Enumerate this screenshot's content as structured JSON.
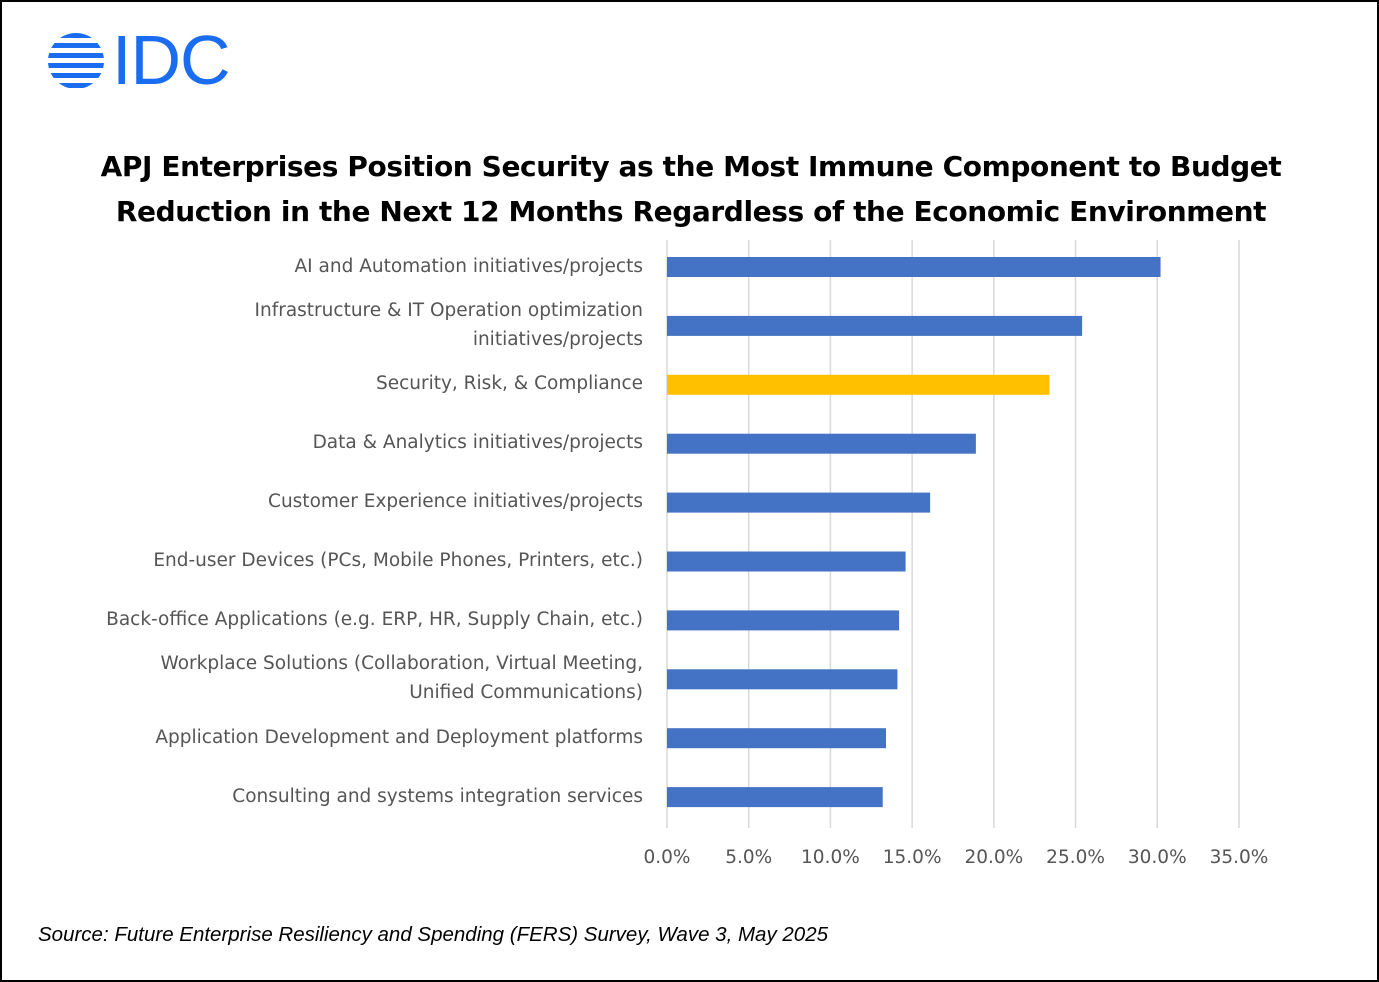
{
  "logo": {
    "text": "IDC",
    "color": "#1a6cf0"
  },
  "chart_data": {
    "type": "bar",
    "orientation": "horizontal",
    "title_lines": [
      "APJ Enterprises Position Security as the Most Immune Component to Budget",
      "Reduction in the Next 12 Months Regardless of the Economic Environment"
    ],
    "categories": [
      "AI and Automation initiatives/projects",
      "Infrastructure & IT Operation optimization\ninitiatives/projects",
      "Security, Risk, & Compliance",
      "Data & Analytics initiatives/projects",
      "Customer Experience initiatives/projects",
      "End-user Devices (PCs, Mobile Phones, Printers, etc.)",
      "Back-office Applications (e.g. ERP, HR, Supply Chain, etc.)",
      "Workplace Solutions (Collaboration, Virtual Meeting,\nUnified Communications)",
      "Application Development and Deployment platforms",
      "Consulting and systems integration services"
    ],
    "values": [
      30.2,
      25.4,
      23.4,
      18.9,
      16.1,
      14.6,
      14.2,
      14.1,
      13.4,
      13.2
    ],
    "colors": [
      "#4472c4",
      "#4472c4",
      "#ffc000",
      "#4472c4",
      "#4472c4",
      "#4472c4",
      "#4472c4",
      "#4472c4",
      "#4472c4",
      "#4472c4"
    ],
    "highlight_color": "#ffc000",
    "bar_color": "#4472c4",
    "xlim": [
      0,
      35
    ],
    "x_ticks": [
      "0.0%",
      "5.0%",
      "10.0%",
      "15.0%",
      "20.0%",
      "25.0%",
      "30.0%",
      "35.0%"
    ],
    "x_tick_values": [
      0,
      5,
      10,
      15,
      20,
      25,
      30,
      35
    ],
    "xlabel": "",
    "ylabel": "",
    "grid": "vertical",
    "legend": "none"
  },
  "source": "Source: Future Enterprise Resiliency and Spending (FERS) Survey, Wave 3, May 2025"
}
